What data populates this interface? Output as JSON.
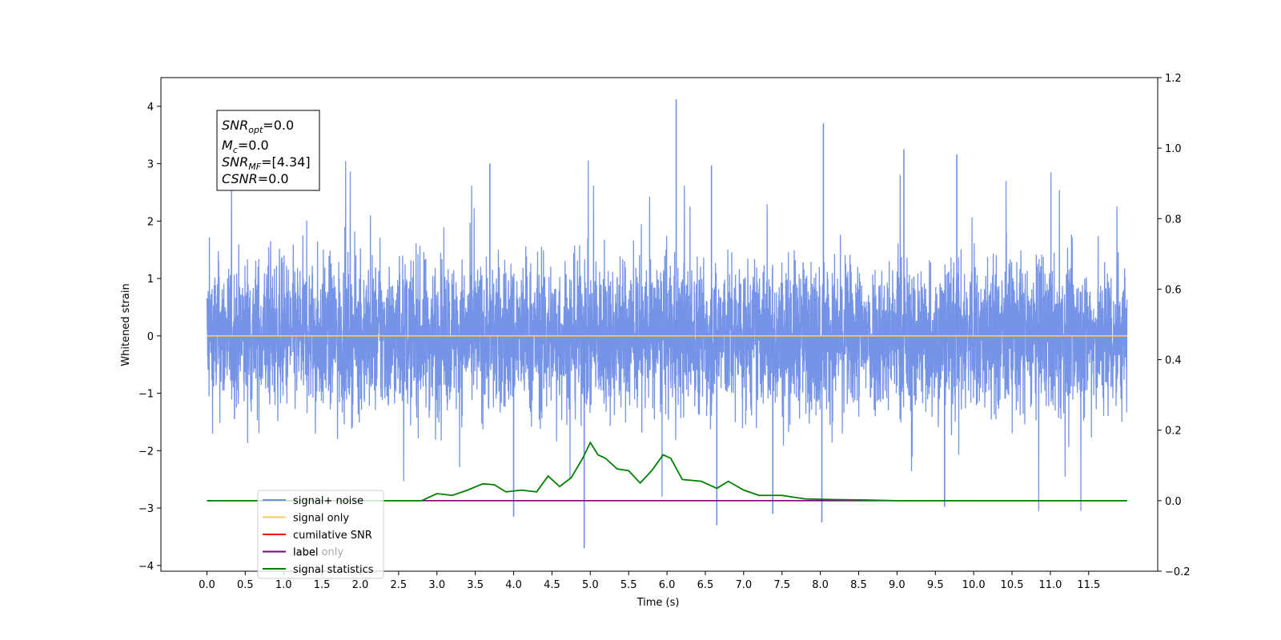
{
  "chart_data": {
    "type": "line",
    "xlabel": "Time (s)",
    "ylabel_left": "Whitened strain",
    "x_ticks": [
      "0.0",
      "0.5",
      "1.0",
      "1.5",
      "2.0",
      "2.5",
      "3.0",
      "3.5",
      "4.0",
      "4.5",
      "5.0",
      "5.5",
      "6.0",
      "6.5",
      "7.0",
      "7.5",
      "8.0",
      "8.5",
      "9.0",
      "9.5",
      "10.0",
      "10.5",
      "11.0",
      "11.5"
    ],
    "y_left_ticks": [
      "4",
      "3",
      "2",
      "1",
      "0",
      "−1",
      "−2",
      "−3",
      "−4"
    ],
    "y_right_ticks": [
      "1.2",
      "1.0",
      "0.8",
      "0.6",
      "0.4",
      "0.2",
      "0.0",
      "−0.2"
    ],
    "xlim": [
      -0.6,
      12.4
    ],
    "ylim_left": [
      -4.1,
      4.5
    ],
    "ylim_right": [
      -0.2,
      1.2
    ],
    "annotation": {
      "snr_opt": {
        "base": "SNR",
        "sub": "opt",
        "rest": "=0.0"
      },
      "mc": {
        "base": "M",
        "sub": "c",
        "rest": "=0.0"
      },
      "snr_mf": {
        "base": "SNR",
        "sub": "MF",
        "rest": "=[4.34]"
      },
      "csnr": {
        "base": "CSNR",
        "sub": "",
        "rest": "=0.0"
      }
    },
    "legend": {
      "placement": "lower-left",
      "entries": [
        {
          "label": "signal+ noise",
          "color": "#6f8ee6"
        },
        {
          "label": "signal only",
          "color": "#ffc966"
        },
        {
          "label": "cumilative SNR",
          "color": "#ff0000"
        },
        {
          "label": "label",
          "color": "#800080"
        },
        {
          "label": "signal statistics",
          "color": "#008000"
        }
      ],
      "hidden_label": "label only"
    },
    "series": [
      {
        "name": "signal+ noise",
        "axis": "left",
        "color": "#6f8ee6",
        "x_range": [
          0.0,
          12.0
        ],
        "envelope": [
          -2.8,
          2.8
        ],
        "spikes": [
          {
            "x": 6.12,
            "y": 4.12
          },
          {
            "x": 8.04,
            "y": 3.7
          },
          {
            "x": 9.09,
            "y": 3.25
          },
          {
            "x": 9.78,
            "y": 3.16
          },
          {
            "x": 4.92,
            "y": -3.7
          },
          {
            "x": 6.65,
            "y": -3.3
          },
          {
            "x": 8.02,
            "y": -3.25
          },
          {
            "x": 4.0,
            "y": -3.15
          },
          {
            "x": 3.69,
            "y": 3.0
          },
          {
            "x": 6.58,
            "y": 2.97
          },
          {
            "x": 9.62,
            "y": -2.98
          },
          {
            "x": 7.38,
            "y": -3.1
          }
        ]
      },
      {
        "name": "signal only",
        "axis": "left",
        "color": "#ffc966",
        "x": [
          0.0,
          12.0
        ],
        "y": [
          0.0,
          0.0
        ]
      },
      {
        "name": "label",
        "axis": "right",
        "color": "#800080",
        "x": [
          0.0,
          12.0
        ],
        "y": [
          0.0,
          0.0
        ]
      },
      {
        "name": "signal statistics",
        "axis": "right",
        "color": "#008000",
        "x": [
          0.0,
          2.8,
          3.0,
          3.2,
          3.4,
          3.6,
          3.75,
          3.9,
          4.1,
          4.3,
          4.45,
          4.6,
          4.75,
          4.9,
          5.0,
          5.1,
          5.2,
          5.35,
          5.5,
          5.65,
          5.8,
          5.95,
          6.05,
          6.2,
          6.45,
          6.65,
          6.8,
          7.0,
          7.2,
          7.5,
          7.8,
          8.2,
          8.6,
          9.0,
          12.0
        ],
        "y": [
          0.0,
          0.0,
          0.02,
          0.015,
          0.03,
          0.048,
          0.045,
          0.025,
          0.03,
          0.025,
          0.07,
          0.04,
          0.065,
          0.12,
          0.165,
          0.13,
          0.12,
          0.09,
          0.085,
          0.05,
          0.085,
          0.13,
          0.12,
          0.06,
          0.055,
          0.035,
          0.055,
          0.03,
          0.015,
          0.015,
          0.005,
          0.003,
          0.002,
          0.0,
          0.0
        ]
      }
    ]
  }
}
